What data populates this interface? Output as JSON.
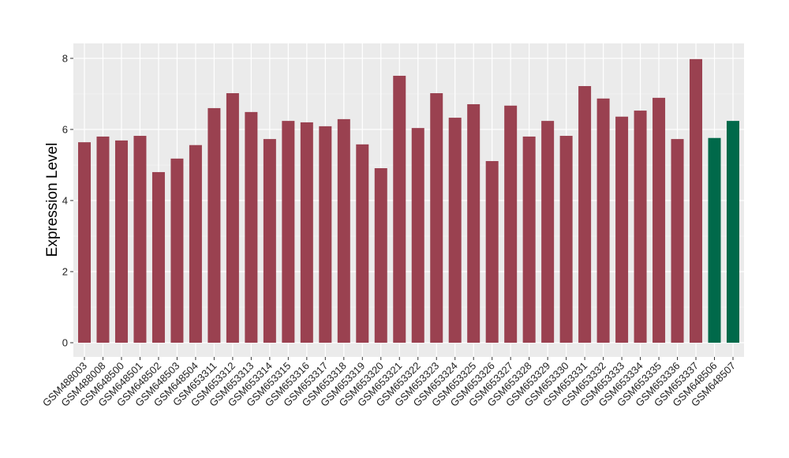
{
  "chart_data": {
    "type": "bar",
    "title": "",
    "xlabel": "",
    "ylabel": "Expression Level",
    "ylim": [
      -0.4,
      8.42
    ],
    "yticks": [
      0,
      2,
      4,
      6,
      8
    ],
    "grid": true,
    "categories": [
      "GSM488003",
      "GSM488008",
      "GSM648500",
      "GSM648501",
      "GSM648502",
      "GSM648503",
      "GSM648504",
      "GSM653311",
      "GSM653312",
      "GSM653313",
      "GSM653314",
      "GSM653315",
      "GSM653316",
      "GSM653317",
      "GSM653318",
      "GSM653319",
      "GSM653320",
      "GSM653321",
      "GSM653322",
      "GSM653323",
      "GSM653324",
      "GSM653325",
      "GSM653326",
      "GSM653327",
      "GSM653328",
      "GSM653329",
      "GSM653330",
      "GSM653331",
      "GSM653332",
      "GSM653333",
      "GSM653334",
      "GSM653335",
      "GSM653336",
      "GSM653337",
      "GSM648506",
      "GSM648507"
    ],
    "values": [
      5.64,
      5.8,
      5.69,
      5.82,
      4.8,
      5.18,
      5.56,
      6.6,
      7.02,
      6.49,
      5.73,
      6.24,
      6.2,
      6.09,
      6.29,
      5.58,
      4.91,
      7.51,
      6.04,
      7.02,
      6.33,
      6.71,
      5.11,
      6.67,
      5.8,
      6.24,
      5.82,
      7.22,
      6.87,
      6.36,
      6.53,
      6.89,
      5.73,
      7.98,
      5.76,
      6.24
    ],
    "groups": [
      "a",
      "a",
      "a",
      "a",
      "a",
      "a",
      "a",
      "a",
      "a",
      "a",
      "a",
      "a",
      "a",
      "a",
      "a",
      "a",
      "a",
      "a",
      "a",
      "a",
      "a",
      "a",
      "a",
      "a",
      "a",
      "a",
      "a",
      "a",
      "a",
      "a",
      "a",
      "a",
      "a",
      "a",
      "b",
      "b"
    ],
    "colors": {
      "a": "#9a4150",
      "b": "#00694a"
    },
    "panel_background": "#ebebeb"
  }
}
